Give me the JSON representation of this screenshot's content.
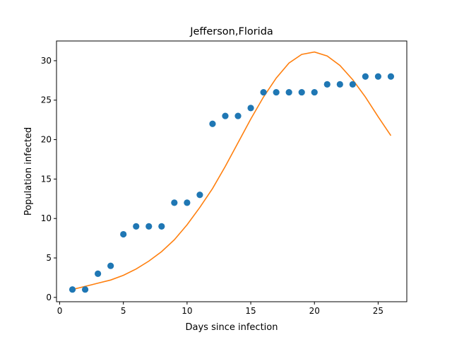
{
  "chart_data": {
    "type": "scatter",
    "title": "Jefferson,Florida",
    "xlabel": "Days since infection",
    "ylabel": "Population infected",
    "xlim": [
      -0.25,
      27.25
    ],
    "ylim": [
      -0.55,
      32.5
    ],
    "xticks": [
      0,
      5,
      10,
      15,
      20,
      25
    ],
    "yticks": [
      0,
      5,
      10,
      15,
      20,
      25,
      30
    ],
    "grid": false,
    "series": [
      {
        "kind": "scatter",
        "color": "#1f77b4",
        "x": [
          1,
          2,
          3,
          4,
          5,
          6,
          7,
          8,
          9,
          10,
          11,
          12,
          13,
          14,
          15,
          16,
          17,
          18,
          19,
          20,
          21,
          22,
          23,
          24,
          25,
          26
        ],
        "y": [
          1,
          1,
          3,
          4,
          8,
          9,
          9,
          9,
          12,
          12,
          13,
          22,
          23,
          23,
          24,
          26,
          26,
          26,
          26,
          26,
          27,
          27,
          27,
          28,
          28,
          28
        ]
      },
      {
        "kind": "line",
        "color": "#ff7f0e",
        "x": [
          1,
          2,
          3,
          4,
          5,
          6,
          7,
          8,
          9,
          10,
          11,
          12,
          13,
          14,
          15,
          16,
          17,
          18,
          19,
          20,
          21,
          22,
          23,
          24,
          25,
          26
        ],
        "y": [
          1.0,
          1.4,
          1.8,
          2.2,
          2.8,
          3.6,
          4.6,
          5.8,
          7.3,
          9.2,
          11.4,
          13.8,
          16.6,
          19.6,
          22.6,
          25.4,
          27.8,
          29.7,
          30.8,
          31.1,
          30.6,
          29.4,
          27.6,
          25.4,
          22.9,
          20.5
        ]
      }
    ]
  }
}
